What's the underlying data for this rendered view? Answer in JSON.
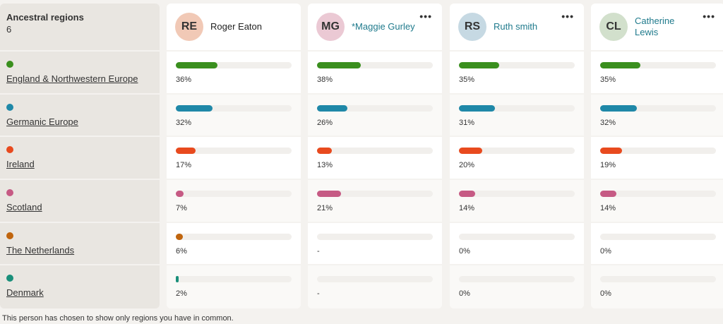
{
  "sidebar": {
    "title": "Ancestral regions",
    "count": "6",
    "regions": [
      {
        "label": "England & Northwestern Europe",
        "color": "#3a8f1e"
      },
      {
        "label": "Germanic Europe",
        "color": "#1f88a8"
      },
      {
        "label": "Ireland",
        "color": "#e84a1e"
      },
      {
        "label": "Scotland",
        "color": "#c65a84"
      },
      {
        "label": "The Netherlands",
        "color": "#c0650e"
      },
      {
        "label": "Denmark",
        "color": "#1a8f7a"
      }
    ]
  },
  "people": [
    {
      "initials": "RE",
      "name": "Roger Eaton",
      "avatar_color": "#f1c9b6",
      "linked": false,
      "menu": "",
      "values": [
        36,
        32,
        17,
        7,
        6,
        2
      ],
      "labels": [
        "36%",
        "32%",
        "17%",
        "7%",
        "6%",
        "2%"
      ]
    },
    {
      "initials": "MG",
      "name": "*Maggie Gurley",
      "avatar_color": "#ebc9d4",
      "linked": true,
      "menu": "•••",
      "values": [
        38,
        26,
        13,
        21,
        null,
        null
      ],
      "labels": [
        "38%",
        "26%",
        "13%",
        "21%",
        "-",
        "-"
      ]
    },
    {
      "initials": "RS",
      "name": "Ruth smith",
      "avatar_color": "#c6d9e3",
      "linked": true,
      "menu": "•••",
      "values": [
        35,
        31,
        20,
        14,
        0,
        0
      ],
      "labels": [
        "35%",
        "31%",
        "20%",
        "14%",
        "0%",
        "0%"
      ]
    },
    {
      "initials": "CL",
      "name": "Catherine Lewis",
      "avatar_color": "#d2e0cc",
      "linked": true,
      "menu": "•••",
      "values": [
        35,
        32,
        19,
        14,
        0,
        0
      ],
      "labels": [
        "35%",
        "32%",
        "19%",
        "14%",
        "0%",
        "0%"
      ]
    }
  ],
  "footer": "This person has chosen to show only regions you have in common."
}
